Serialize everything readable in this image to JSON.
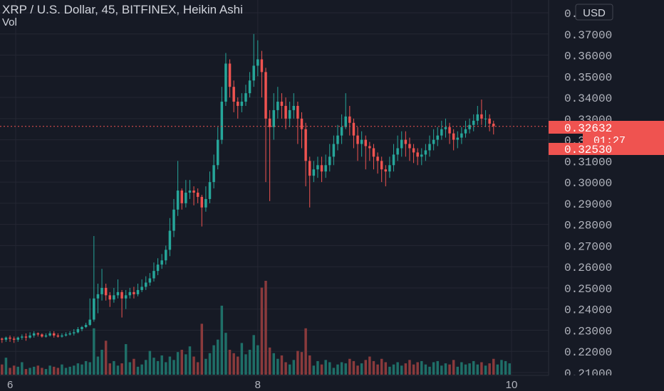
{
  "header": {
    "title": "XRP / U.S. Dollar, 45, BITFINEX, Heikin Ashi",
    "sub": "Vol",
    "currency_button": "USD"
  },
  "colors": {
    "background": "#161a25",
    "up": "#26a69a",
    "down": "#ef5350",
    "up_volume": "#1f6f68",
    "down_volume": "#8a3a3c",
    "text": "#d1d4dc",
    "axis_text": "#b2b5be",
    "grid": "#242733"
  },
  "price_labels": [
    {
      "text": "0.32632",
      "kind": "last"
    },
    {
      "text": "01:27",
      "kind": "countdown"
    },
    {
      "text": "0.32530",
      "kind": "ask"
    }
  ],
  "chart_data": {
    "type": "candlestick",
    "title": "XRP / U.S. Dollar, 45, BITFINEX, Heikin Ashi",
    "y_ticks": [
      "0.38000",
      "0.37000",
      "0.36000",
      "0.35000",
      "0.34000",
      "0.33000",
      "0.32000",
      "0.31000",
      "0.30000",
      "0.29000",
      "0.28000",
      "0.27000",
      "0.26000",
      "0.25000",
      "0.24000",
      "0.23000",
      "0.22000",
      "0.21000"
    ],
    "ylim": [
      0.21,
      0.38
    ],
    "x_ticks": [
      {
        "label": "6",
        "index": 0
      },
      {
        "label": "8",
        "index": 64
      },
      {
        "label": "10",
        "index": 128
      }
    ],
    "num_bars": 128,
    "current_price": 0.32632,
    "ask_price": 0.3253,
    "grid": true,
    "volume_pane": true,
    "candles": [
      [
        0.226,
        0.2255,
        0.2265,
        0.224
      ],
      [
        0.2255,
        0.2265,
        0.227,
        0.2245
      ],
      [
        0.2265,
        0.226,
        0.2275,
        0.2245
      ],
      [
        0.226,
        0.2255,
        0.227,
        0.224
      ],
      [
        0.2255,
        0.2265,
        0.227,
        0.2245
      ],
      [
        0.2265,
        0.227,
        0.228,
        0.2255
      ],
      [
        0.227,
        0.2265,
        0.2285,
        0.225
      ],
      [
        0.2265,
        0.2275,
        0.229,
        0.226
      ],
      [
        0.2275,
        0.2285,
        0.2295,
        0.2265
      ],
      [
        0.2285,
        0.228,
        0.229,
        0.227
      ],
      [
        0.228,
        0.227,
        0.2285,
        0.2265
      ],
      [
        0.227,
        0.2275,
        0.2285,
        0.2265
      ],
      [
        0.2275,
        0.2285,
        0.2295,
        0.227
      ],
      [
        0.2285,
        0.2275,
        0.2295,
        0.2265
      ],
      [
        0.2275,
        0.227,
        0.2285,
        0.2265
      ],
      [
        0.227,
        0.2275,
        0.2285,
        0.2265
      ],
      [
        0.2275,
        0.228,
        0.229,
        0.227
      ],
      [
        0.228,
        0.2285,
        0.2295,
        0.2275
      ],
      [
        0.2285,
        0.229,
        0.2305,
        0.2275
      ],
      [
        0.229,
        0.2305,
        0.2315,
        0.2285
      ],
      [
        0.2305,
        0.2315,
        0.232,
        0.2295
      ],
      [
        0.2315,
        0.2325,
        0.2335,
        0.231
      ],
      [
        0.2325,
        0.235,
        0.245,
        0.232
      ],
      [
        0.235,
        0.245,
        0.2745,
        0.234
      ],
      [
        0.245,
        0.247,
        0.252,
        0.238
      ],
      [
        0.247,
        0.25,
        0.259,
        0.244
      ],
      [
        0.25,
        0.2465,
        0.252,
        0.244
      ],
      [
        0.2465,
        0.2445,
        0.248,
        0.241
      ],
      [
        0.2445,
        0.2465,
        0.25,
        0.243
      ],
      [
        0.2465,
        0.248,
        0.254,
        0.245
      ],
      [
        0.248,
        0.245,
        0.249,
        0.236
      ],
      [
        0.245,
        0.2465,
        0.249,
        0.24
      ],
      [
        0.2465,
        0.248,
        0.25,
        0.245
      ],
      [
        0.248,
        0.247,
        0.2505,
        0.245
      ],
      [
        0.247,
        0.249,
        0.252,
        0.246
      ],
      [
        0.249,
        0.2505,
        0.254,
        0.248
      ],
      [
        0.2505,
        0.2525,
        0.2555,
        0.249
      ],
      [
        0.2525,
        0.2545,
        0.257,
        0.251
      ],
      [
        0.2545,
        0.258,
        0.262,
        0.253
      ],
      [
        0.258,
        0.261,
        0.264,
        0.256
      ],
      [
        0.261,
        0.263,
        0.266,
        0.259
      ],
      [
        0.263,
        0.268,
        0.27,
        0.261
      ],
      [
        0.268,
        0.277,
        0.283,
        0.265
      ],
      [
        0.277,
        0.287,
        0.292,
        0.274
      ],
      [
        0.287,
        0.296,
        0.31,
        0.284
      ],
      [
        0.296,
        0.29,
        0.297,
        0.287
      ],
      [
        0.29,
        0.295,
        0.301,
        0.288
      ],
      [
        0.295,
        0.296,
        0.301,
        0.292
      ],
      [
        0.296,
        0.295,
        0.298,
        0.289
      ],
      [
        0.295,
        0.293,
        0.297,
        0.29
      ],
      [
        0.293,
        0.288,
        0.294,
        0.279
      ],
      [
        0.288,
        0.292,
        0.298,
        0.286
      ],
      [
        0.292,
        0.3,
        0.305,
        0.29
      ],
      [
        0.3,
        0.308,
        0.313,
        0.297
      ],
      [
        0.308,
        0.32,
        0.326,
        0.306
      ],
      [
        0.32,
        0.338,
        0.345,
        0.318
      ],
      [
        0.338,
        0.356,
        0.361,
        0.336
      ],
      [
        0.356,
        0.345,
        0.358,
        0.34
      ],
      [
        0.345,
        0.338,
        0.348,
        0.333
      ],
      [
        0.338,
        0.336,
        0.34,
        0.33
      ],
      [
        0.336,
        0.338,
        0.342,
        0.333
      ],
      [
        0.338,
        0.342,
        0.346,
        0.336
      ],
      [
        0.342,
        0.348,
        0.352,
        0.34
      ],
      [
        0.348,
        0.355,
        0.37,
        0.345
      ],
      [
        0.355,
        0.358,
        0.367,
        0.35
      ],
      [
        0.358,
        0.352,
        0.362,
        0.34
      ],
      [
        0.352,
        0.33,
        0.354,
        0.3
      ],
      [
        0.33,
        0.326,
        0.334,
        0.291
      ],
      [
        0.326,
        0.334,
        0.342,
        0.32
      ],
      [
        0.334,
        0.338,
        0.345,
        0.33
      ],
      [
        0.338,
        0.336,
        0.342,
        0.33
      ],
      [
        0.336,
        0.33,
        0.34,
        0.325
      ],
      [
        0.33,
        0.334,
        0.338,
        0.326
      ],
      [
        0.334,
        0.336,
        0.342,
        0.33
      ],
      [
        0.336,
        0.33,
        0.338,
        0.318
      ],
      [
        0.33,
        0.325,
        0.333,
        0.316
      ],
      [
        0.325,
        0.31,
        0.328,
        0.298
      ],
      [
        0.31,
        0.303,
        0.312,
        0.288
      ],
      [
        0.303,
        0.306,
        0.31,
        0.3
      ],
      [
        0.306,
        0.308,
        0.312,
        0.302
      ],
      [
        0.308,
        0.305,
        0.312,
        0.3
      ],
      [
        0.305,
        0.308,
        0.313,
        0.302
      ],
      [
        0.308,
        0.312,
        0.318,
        0.305
      ],
      [
        0.312,
        0.318,
        0.322,
        0.308
      ],
      [
        0.318,
        0.322,
        0.327,
        0.315
      ],
      [
        0.322,
        0.326,
        0.332,
        0.318
      ],
      [
        0.326,
        0.331,
        0.342,
        0.325
      ],
      [
        0.331,
        0.328,
        0.336,
        0.322
      ],
      [
        0.328,
        0.322,
        0.33,
        0.316
      ],
      [
        0.322,
        0.318,
        0.326,
        0.31
      ],
      [
        0.318,
        0.32,
        0.324,
        0.312
      ],
      [
        0.32,
        0.317,
        0.322,
        0.306
      ],
      [
        0.317,
        0.316,
        0.319,
        0.31
      ],
      [
        0.316,
        0.312,
        0.318,
        0.306
      ],
      [
        0.312,
        0.31,
        0.314,
        0.304
      ],
      [
        0.31,
        0.306,
        0.312,
        0.3
      ],
      [
        0.306,
        0.305,
        0.308,
        0.298
      ],
      [
        0.305,
        0.308,
        0.312,
        0.302
      ],
      [
        0.308,
        0.313,
        0.318,
        0.305
      ],
      [
        0.313,
        0.316,
        0.322,
        0.31
      ],
      [
        0.316,
        0.32,
        0.324,
        0.312
      ],
      [
        0.32,
        0.318,
        0.324,
        0.312
      ],
      [
        0.318,
        0.316,
        0.321,
        0.31
      ],
      [
        0.316,
        0.314,
        0.318,
        0.309
      ],
      [
        0.314,
        0.312,
        0.316,
        0.308
      ],
      [
        0.312,
        0.313,
        0.316,
        0.308
      ],
      [
        0.313,
        0.315,
        0.318,
        0.31
      ],
      [
        0.315,
        0.318,
        0.322,
        0.312
      ],
      [
        0.318,
        0.32,
        0.325,
        0.315
      ],
      [
        0.32,
        0.322,
        0.326,
        0.317
      ],
      [
        0.322,
        0.325,
        0.329,
        0.32
      ],
      [
        0.325,
        0.326,
        0.33,
        0.321
      ],
      [
        0.326,
        0.323,
        0.328,
        0.318
      ],
      [
        0.323,
        0.32,
        0.325,
        0.315
      ],
      [
        0.32,
        0.321,
        0.324,
        0.316
      ],
      [
        0.321,
        0.323,
        0.326,
        0.318
      ],
      [
        0.323,
        0.325,
        0.329,
        0.321
      ],
      [
        0.325,
        0.327,
        0.33,
        0.323
      ],
      [
        0.327,
        0.329,
        0.332,
        0.324
      ],
      [
        0.329,
        0.332,
        0.336,
        0.327
      ],
      [
        0.332,
        0.33,
        0.339,
        0.327
      ],
      [
        0.33,
        0.33,
        0.334,
        0.326
      ],
      [
        0.33,
        0.3276,
        0.332,
        0.324
      ],
      [
        0.3276,
        0.3264,
        0.329,
        0.3225
      ]
    ],
    "volume": [
      9,
      15,
      6,
      8,
      7,
      11,
      5,
      6,
      7,
      8,
      6,
      5,
      8,
      7,
      6,
      9,
      6,
      7,
      8,
      10,
      9,
      12,
      11,
      41,
      16,
      22,
      30,
      10,
      12,
      8,
      10,
      27,
      11,
      14,
      7,
      9,
      13,
      21,
      15,
      12,
      17,
      11,
      16,
      13,
      20,
      22,
      18,
      25,
      16,
      11,
      45,
      14,
      19,
      26,
      31,
      61,
      37,
      22,
      19,
      16,
      28,
      18,
      22,
      35,
      26,
      77,
      83,
      24,
      19,
      14,
      17,
      11,
      9,
      13,
      21,
      20,
      41,
      17,
      8,
      12,
      9,
      13,
      11,
      6,
      9,
      11,
      10,
      14,
      12,
      8,
      10,
      13,
      16,
      12,
      9,
      14,
      11,
      7,
      9,
      11,
      8,
      10,
      13,
      9,
      11,
      12,
      9,
      7,
      11,
      12,
      8,
      10,
      9,
      13,
      7,
      11,
      9,
      10,
      12,
      9,
      11,
      8,
      10,
      14,
      9,
      13,
      12,
      10
    ]
  }
}
